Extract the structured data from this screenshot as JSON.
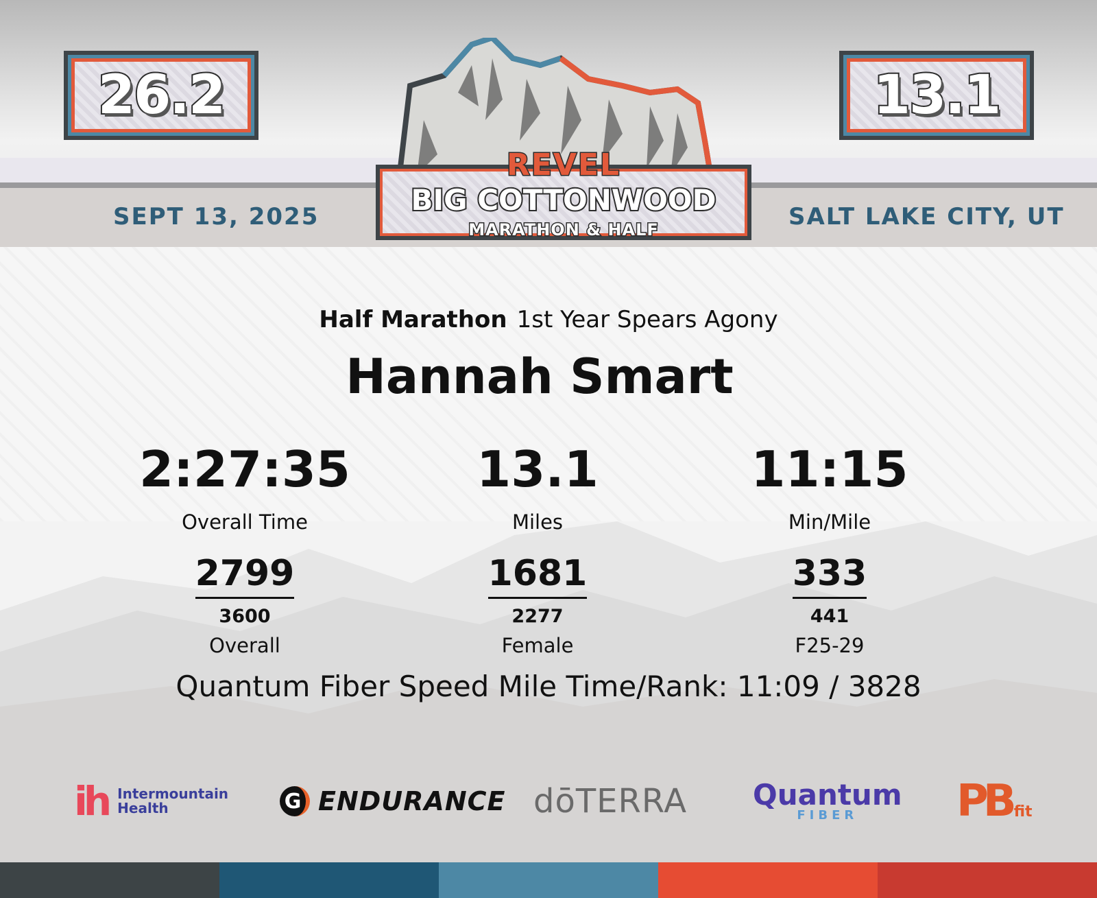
{
  "header": {
    "left_distance": "26.2",
    "right_distance": "13.1",
    "date": "SEPT 13, 2025",
    "location": "SALT LAKE CITY, UT",
    "logo": {
      "brand": "REVEL",
      "event": "BIG COTTONWOOD",
      "subtitle": "MARATHON & HALF"
    }
  },
  "result": {
    "race": "Half Marathon",
    "team": "1st Year Spears Agony",
    "runner_name": "Hannah Smart",
    "overall_time": "2:27:35",
    "overall_time_label": "Overall Time",
    "miles": "13.1",
    "miles_label": "Miles",
    "pace": "11:15",
    "pace_label": "Min/Mile"
  },
  "ranks": {
    "overall": {
      "place": "2799",
      "total": "3600",
      "label": "Overall"
    },
    "gender": {
      "place": "1681",
      "total": "2277",
      "label": "Female"
    },
    "age_group": {
      "place": "333",
      "total": "441",
      "label": "F25-29"
    }
  },
  "speed_mile": "Quantum Fiber Speed Mile Time/Rank: 11:09 / 3828",
  "sponsors": {
    "intermountain": {
      "mark": "ih",
      "line1": "Intermountain",
      "line2": "Health"
    },
    "gatorade": {
      "mark": "G",
      "text": "ENDURANCE"
    },
    "doterra": {
      "text": "dōTERRA"
    },
    "quantum": {
      "text": "Quantum",
      "sub": "FIBER"
    },
    "pbfit": {
      "text": "PB",
      "sub": "fit"
    }
  },
  "colors": {
    "bar": [
      "#3d4446",
      "#1f5775",
      "#4d88a5",
      "#e64c33",
      "#c83a30"
    ],
    "accent_blue": "#2f5d78",
    "accent_red": "#e25a3b"
  }
}
